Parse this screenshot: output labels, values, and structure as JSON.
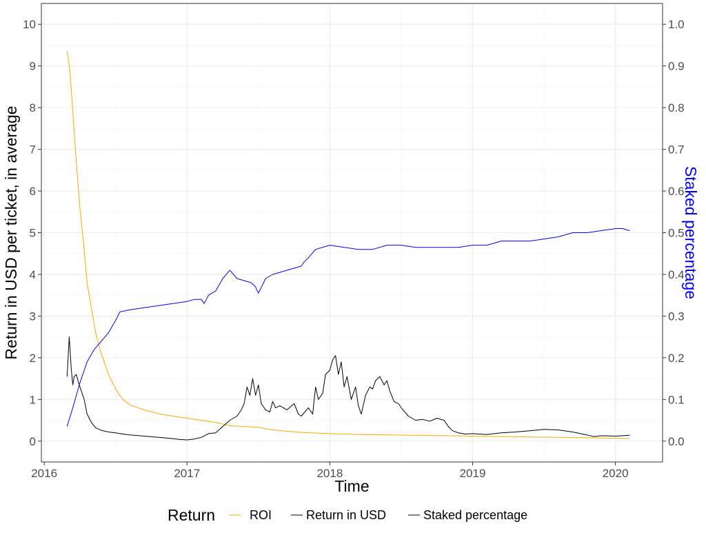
{
  "chart_data": {
    "type": "line",
    "title": "",
    "xlabel": "Time",
    "ylabel": "Return in USD per ticket, in average",
    "y2label": "Staked percentage",
    "xlim": [
      2015.98,
      2020.33
    ],
    "ylim": [
      -0.5,
      10.5
    ],
    "y2lim": [
      -0.05,
      1.05
    ],
    "x_ticks": [
      2016,
      2017,
      2018,
      2019,
      2020
    ],
    "y_ticks": [
      0,
      1,
      2,
      3,
      4,
      5,
      6,
      7,
      8,
      9,
      10
    ],
    "y2_ticks": [
      "0.0",
      "0.1",
      "0.2",
      "0.3",
      "0.4",
      "0.5",
      "0.6",
      "0.7",
      "0.8",
      "0.9",
      "1.0"
    ],
    "grid": true,
    "legend": {
      "title": "Return",
      "position": "bottom",
      "entries": [
        {
          "label": "ROI",
          "color": "#FFA500"
        },
        {
          "label": "Return in USD",
          "color": "#000000"
        },
        {
          "label": "Staked percentage",
          "color": "#000000"
        }
      ]
    },
    "colors": {
      "roi": "#FFA500",
      "usd": "#000000",
      "staked": "#0000FF",
      "y2label": "#0000FF"
    },
    "series": [
      {
        "name": "ROI",
        "axis": "left",
        "x": [
          2016.16,
          2016.18,
          2016.2,
          2016.22,
          2016.25,
          2016.28,
          2016.3,
          2016.33,
          2016.36,
          2016.4,
          2016.45,
          2016.5,
          2016.55,
          2016.6,
          2016.7,
          2016.8,
          2016.9,
          2017.0,
          2017.1,
          2017.2,
          2017.3,
          2017.45,
          2017.5,
          2017.6,
          2017.8,
          2018.0,
          2018.2,
          2018.4,
          2018.6,
          2018.8,
          2019.0,
          2019.2,
          2019.4,
          2019.6,
          2019.8,
          2020.0,
          2020.1
        ],
        "y": [
          9.35,
          8.9,
          7.9,
          6.9,
          5.6,
          4.6,
          3.8,
          3.2,
          2.6,
          2.1,
          1.6,
          1.25,
          1.0,
          0.87,
          0.75,
          0.66,
          0.6,
          0.55,
          0.5,
          0.45,
          0.37,
          0.34,
          0.33,
          0.27,
          0.21,
          0.18,
          0.16,
          0.15,
          0.14,
          0.13,
          0.12,
          0.11,
          0.1,
          0.09,
          0.08,
          0.07,
          0.06
        ]
      },
      {
        "name": "Return in USD",
        "axis": "left",
        "x": [
          2016.16,
          2016.175,
          2016.19,
          2016.2,
          2016.21,
          2016.225,
          2016.24,
          2016.26,
          2016.28,
          2016.3,
          2016.33,
          2016.36,
          2016.4,
          2016.45,
          2016.5,
          2016.55,
          2016.6,
          2016.7,
          2016.8,
          2016.9,
          2016.95,
          2017.0,
          2017.05,
          2017.1,
          2017.15,
          2017.2,
          2017.25,
          2017.3,
          2017.35,
          2017.38,
          2017.4,
          2017.42,
          2017.44,
          2017.46,
          2017.48,
          2017.5,
          2017.52,
          2017.55,
          2017.58,
          2017.6,
          2017.62,
          2017.65,
          2017.7,
          2017.75,
          2017.78,
          2017.8,
          2017.85,
          2017.88,
          2017.9,
          2017.92,
          2017.95,
          2017.97,
          2018.0,
          2018.02,
          2018.04,
          2018.06,
          2018.08,
          2018.1,
          2018.12,
          2018.15,
          2018.18,
          2018.2,
          2018.22,
          2018.25,
          2018.28,
          2018.3,
          2018.32,
          2018.35,
          2018.38,
          2018.4,
          2018.42,
          2018.45,
          2018.48,
          2018.5,
          2018.55,
          2018.6,
          2018.65,
          2018.7,
          2018.75,
          2018.8,
          2018.83,
          2018.86,
          2018.9,
          2018.95,
          2019.0,
          2019.1,
          2019.2,
          2019.3,
          2019.4,
          2019.5,
          2019.6,
          2019.7,
          2019.8,
          2019.85,
          2019.9,
          2020.0,
          2020.1
        ],
        "y": [
          1.55,
          2.5,
          1.7,
          1.35,
          1.55,
          1.6,
          1.4,
          1.2,
          1.0,
          0.65,
          0.45,
          0.32,
          0.26,
          0.22,
          0.2,
          0.17,
          0.15,
          0.12,
          0.09,
          0.06,
          0.04,
          0.03,
          0.05,
          0.09,
          0.18,
          0.2,
          0.35,
          0.5,
          0.6,
          0.75,
          0.9,
          1.3,
          1.1,
          1.5,
          1.1,
          1.35,
          0.9,
          0.75,
          0.7,
          0.95,
          0.8,
          0.85,
          0.75,
          0.9,
          0.65,
          0.6,
          0.8,
          0.65,
          1.3,
          1.0,
          1.15,
          1.6,
          1.7,
          1.95,
          2.05,
          1.6,
          1.9,
          1.3,
          1.55,
          1.0,
          1.3,
          0.85,
          0.65,
          1.1,
          1.3,
          1.25,
          1.45,
          1.55,
          1.35,
          1.45,
          1.2,
          0.95,
          0.9,
          0.8,
          0.6,
          0.5,
          0.52,
          0.48,
          0.55,
          0.5,
          0.35,
          0.25,
          0.2,
          0.17,
          0.18,
          0.16,
          0.2,
          0.22,
          0.25,
          0.28,
          0.27,
          0.22,
          0.15,
          0.11,
          0.13,
          0.12,
          0.14
        ]
      },
      {
        "name": "Staked percentage",
        "axis": "right",
        "x": [
          2016.16,
          2016.2,
          2016.25,
          2016.3,
          2016.35,
          2016.4,
          2016.45,
          2016.5,
          2016.53,
          2016.6,
          2016.7,
          2016.8,
          2016.9,
          2017.0,
          2017.05,
          2017.1,
          2017.12,
          2017.15,
          2017.2,
          2017.25,
          2017.3,
          2017.35,
          2017.4,
          2017.45,
          2017.48,
          2017.5,
          2017.55,
          2017.6,
          2017.7,
          2017.8,
          2017.82,
          2017.85,
          2017.9,
          2018.0,
          2018.1,
          2018.2,
          2018.3,
          2018.4,
          2018.5,
          2018.6,
          2018.7,
          2018.8,
          2018.9,
          2019.0,
          2019.1,
          2019.2,
          2019.3,
          2019.4,
          2019.5,
          2019.6,
          2019.7,
          2019.8,
          2019.9,
          2020.0,
          2020.05,
          2020.1
        ],
        "y": [
          0.035,
          0.08,
          0.14,
          0.19,
          0.22,
          0.24,
          0.26,
          0.29,
          0.31,
          0.315,
          0.32,
          0.325,
          0.33,
          0.335,
          0.34,
          0.34,
          0.33,
          0.35,
          0.36,
          0.39,
          0.41,
          0.39,
          0.385,
          0.38,
          0.37,
          0.355,
          0.39,
          0.4,
          0.41,
          0.42,
          0.43,
          0.44,
          0.46,
          0.47,
          0.465,
          0.46,
          0.46,
          0.47,
          0.47,
          0.465,
          0.465,
          0.465,
          0.465,
          0.47,
          0.47,
          0.48,
          0.48,
          0.48,
          0.485,
          0.49,
          0.5,
          0.5,
          0.505,
          0.51,
          0.51,
          0.505
        ]
      }
    ]
  }
}
